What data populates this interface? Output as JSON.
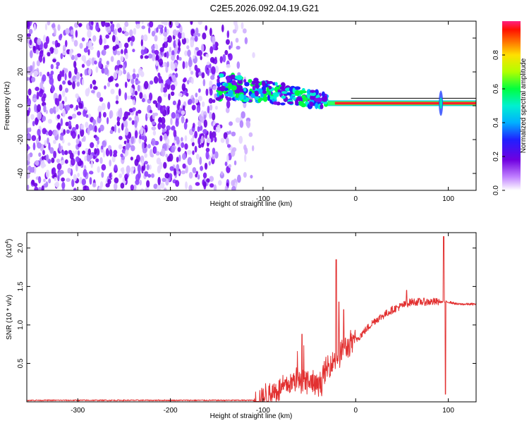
{
  "title": "C2E5.2026.092.04.19.G21",
  "chart_data": [
    {
      "type": "heatmap",
      "xlabel": "Height of straight line (km)",
      "ylabel": "Frequency (Hz)",
      "xlim": [
        -355,
        130
      ],
      "ylim": [
        -50,
        50
      ],
      "xticks": [
        -300,
        -200,
        -100,
        0,
        100
      ],
      "yticks": [
        -40,
        -20,
        0,
        20,
        40
      ],
      "colorbar": {
        "label": "Normalized spectral amplitude",
        "range": [
          0,
          1
        ],
        "ticks": [
          0.0,
          0.2,
          0.4,
          0.6,
          0.8
        ]
      },
      "features": {
        "noise_region_x": [
          -355,
          -110
        ],
        "transition_region_x": [
          -150,
          -30
        ],
        "steady_line_x": [
          -30,
          130
        ],
        "steady_line_freq_hz": 1.5,
        "disturbance_x": 92
      }
    },
    {
      "type": "line",
      "xlabel": "Height of straight line (km)",
      "ylabel": "SNR (10 * v/v)",
      "multiplier": "(x10",
      "multiplier_exp": "4",
      "xlim": [
        -355,
        130
      ],
      "ylim": [
        0,
        2.2
      ],
      "xticks": [
        -300,
        -200,
        -100,
        0,
        100
      ],
      "yticks": [
        0.5,
        1.0,
        1.5,
        2.0
      ],
      "color": "#e23030",
      "series": [
        {
          "values_profile": {
            "x": [
              -355,
              -110,
              -100,
              -80,
              -60,
              -50,
              -40,
              -30,
              -20,
              -10,
              0,
              20,
              40,
              60,
              80,
              90,
              100,
              110,
              130
            ],
            "y": [
              0.02,
              0.02,
              0.06,
              0.18,
              0.3,
              0.25,
              0.2,
              0.45,
              0.6,
              0.7,
              0.8,
              1.05,
              1.2,
              1.3,
              1.3,
              1.3,
              1.3,
              1.27,
              1.27
            ]
          },
          "spikes": [
            {
              "x": -58,
              "y": 0.88
            },
            {
              "x": -21,
              "y": 1.85
            },
            {
              "x": -18,
              "y": 1.3
            },
            {
              "x": -13,
              "y": 1.2
            },
            {
              "x": 55,
              "y": 1.45
            },
            {
              "x": 95,
              "y": 2.15
            },
            {
              "x": 97,
              "y": 0.1
            }
          ]
        }
      ]
    }
  ]
}
